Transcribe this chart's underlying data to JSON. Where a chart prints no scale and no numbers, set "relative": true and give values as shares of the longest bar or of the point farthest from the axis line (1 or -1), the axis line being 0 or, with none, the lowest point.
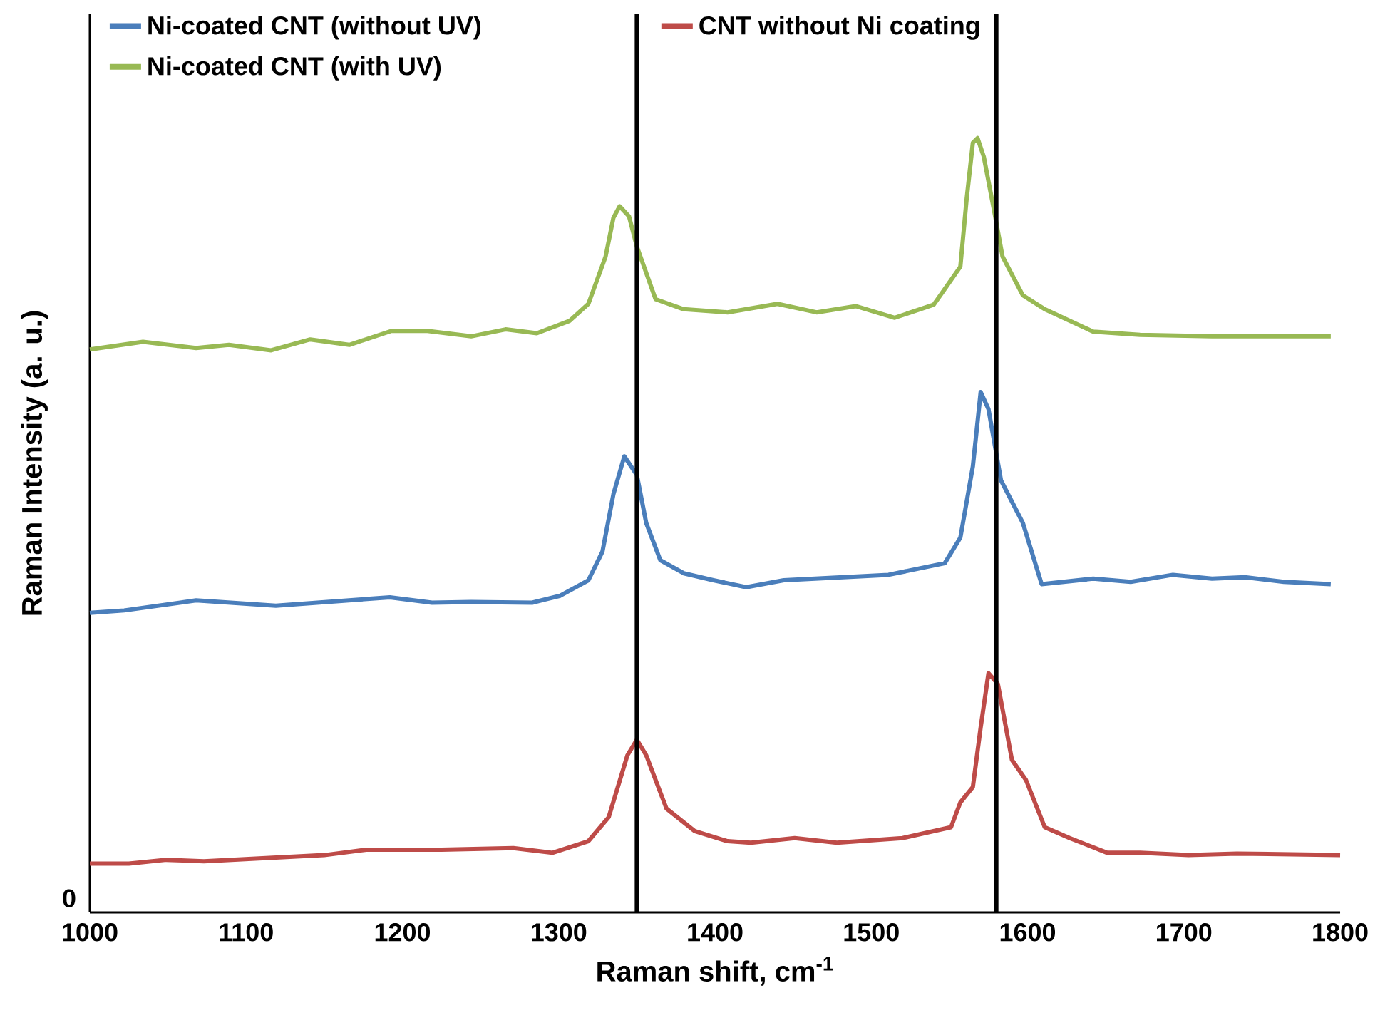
{
  "chart_data": {
    "type": "line",
    "relative": true,
    "xlabel": "Raman shift, cm$^{-1}$",
    "ylabel": "Raman Intensity (a. u.)",
    "xlim": [
      1000,
      1800
    ],
    "xticks": [
      1000,
      1100,
      1200,
      1300,
      1400,
      1500,
      1600,
      1700,
      1800
    ],
    "legend": "top",
    "grid": false,
    "marker": "none",
    "line_style": "solid",
    "annotations": [
      "0"
    ],
    "ref_lines": [
      {
        "axis": "x",
        "value": 1350,
        "color": "#000000"
      },
      {
        "axis": "x",
        "value": 1580,
        "color": "#000000"
      }
    ],
    "series": [
      {
        "name": "Ni-coated CNT (without UV)",
        "color": "#4a7ebb",
        "x": [
          1000,
          1022,
          1068,
          1119,
          1192,
          1219,
          1244,
          1283,
          1301,
          1319,
          1328,
          1335,
          1342,
          1350,
          1356,
          1365,
          1380,
          1399,
          1420,
          1444,
          1511,
          1547,
          1557,
          1565,
          1570,
          1575,
          1583,
          1597,
          1609,
          1642,
          1666,
          1693,
          1718,
          1739,
          1764,
          1794
        ],
        "values": [
          0.387,
          0.39,
          0.403,
          0.396,
          0.407,
          0.4,
          0.401,
          0.4,
          0.409,
          0.429,
          0.466,
          0.54,
          0.589,
          0.565,
          0.503,
          0.455,
          0.438,
          0.429,
          0.42,
          0.429,
          0.436,
          0.451,
          0.484,
          0.576,
          0.672,
          0.65,
          0.558,
          0.503,
          0.424,
          0.431,
          0.427,
          0.436,
          0.431,
          0.433,
          0.427,
          0.424
        ]
      },
      {
        "name": "CNT without Ni coating",
        "color": "#be4b48",
        "x": [
          1000,
          1025,
          1049,
          1073,
          1150,
          1177,
          1225,
          1271,
          1296,
          1319,
          1332,
          1344,
          1350,
          1356,
          1369,
          1387,
          1408,
          1423,
          1451,
          1478,
          1520,
          1551,
          1557,
          1565,
          1570,
          1575,
          1581,
          1590,
          1599,
          1611,
          1627,
          1651,
          1672,
          1703,
          1734,
          1800
        ],
        "values": [
          0.063,
          0.063,
          0.068,
          0.066,
          0.074,
          0.081,
          0.081,
          0.083,
          0.077,
          0.092,
          0.123,
          0.203,
          0.223,
          0.203,
          0.134,
          0.105,
          0.092,
          0.09,
          0.096,
          0.09,
          0.096,
          0.11,
          0.142,
          0.162,
          0.239,
          0.309,
          0.295,
          0.197,
          0.171,
          0.11,
          0.096,
          0.077,
          0.077,
          0.074,
          0.076,
          0.074
        ]
      },
      {
        "name": "Ni-coated CNT (with UV)",
        "color": "#98b954",
        "x": [
          1000,
          1034,
          1068,
          1089,
          1116,
          1141,
          1166,
          1193,
          1216,
          1244,
          1266,
          1286,
          1307,
          1319,
          1330,
          1335,
          1339,
          1345,
          1350,
          1362,
          1380,
          1408,
          1440,
          1465,
          1490,
          1515,
          1540,
          1547,
          1557,
          1561,
          1565,
          1568,
          1572,
          1579,
          1584,
          1597,
          1611,
          1642,
          1672,
          1718,
          1764,
          1794
        ],
        "values": [
          0.727,
          0.737,
          0.729,
          0.733,
          0.726,
          0.74,
          0.733,
          0.751,
          0.751,
          0.744,
          0.753,
          0.748,
          0.764,
          0.786,
          0.847,
          0.897,
          0.912,
          0.899,
          0.86,
          0.792,
          0.779,
          0.775,
          0.786,
          0.775,
          0.783,
          0.768,
          0.785,
          0.805,
          0.834,
          0.921,
          0.994,
          1.0,
          0.976,
          0.902,
          0.847,
          0.797,
          0.779,
          0.75,
          0.746,
          0.744,
          0.744,
          0.744
        ]
      }
    ]
  }
}
